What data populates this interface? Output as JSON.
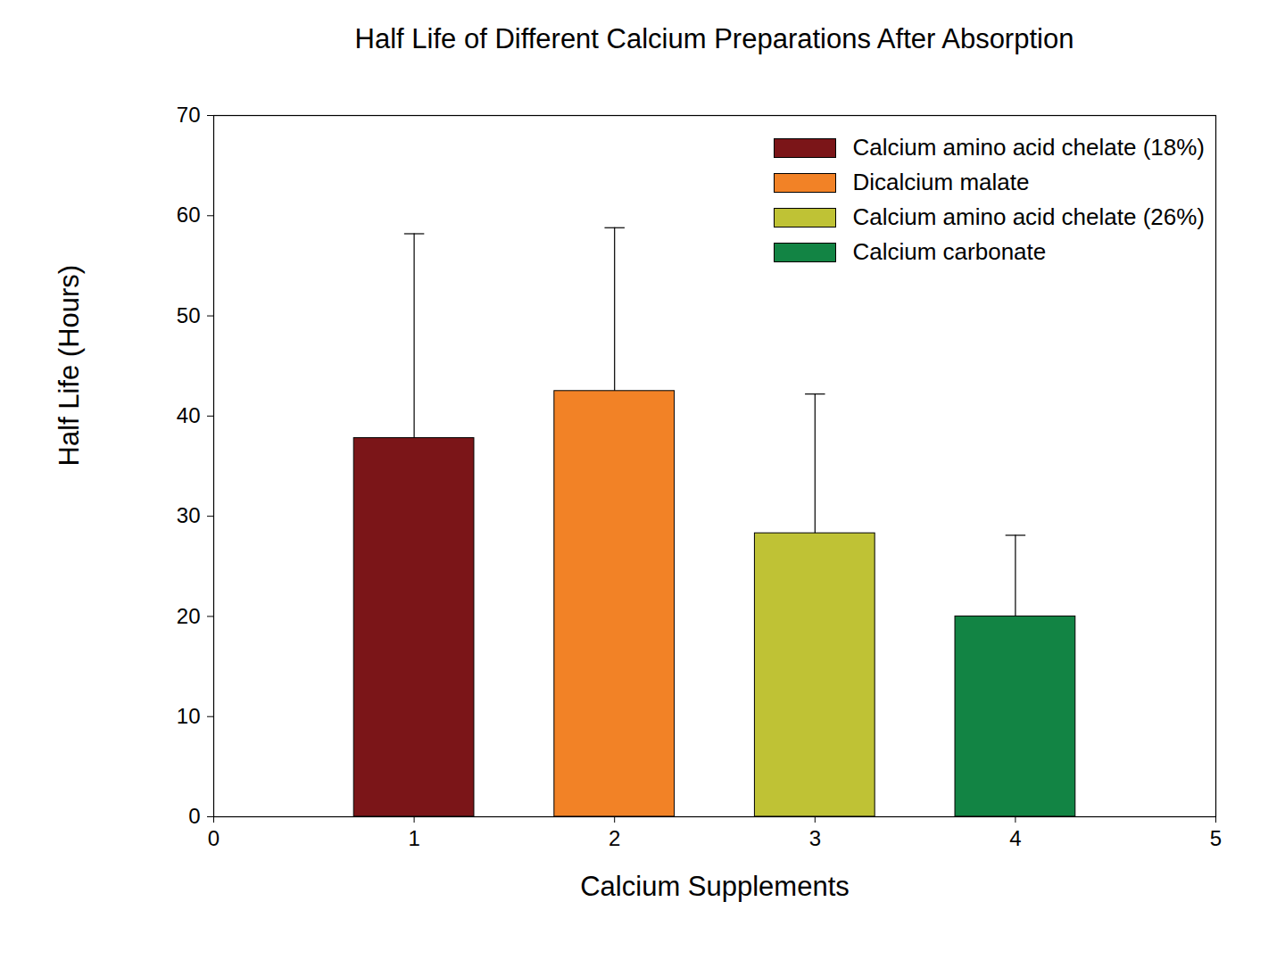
{
  "chart_data": {
    "type": "bar",
    "title": "Half Life of Different Calcium Preparations After Absorption",
    "x_label": "Calcium Supplements",
    "y_label": "Half Life (Hours)",
    "x": [
      1,
      2,
      3,
      4
    ],
    "series": [
      {
        "name": "Calcium amino acid chelate (18%)",
        "color": "#7b1518",
        "values": [
          37.8,
          null,
          null,
          null
        ],
        "errors": [
          20.4,
          null,
          null,
          null
        ]
      },
      {
        "name": "Dicalcium malate",
        "color": "#f28226",
        "values": [
          null,
          42.5,
          null,
          null
        ],
        "errors": [
          null,
          16.3,
          null,
          null
        ]
      },
      {
        "name": "Calcium amino acid chelate (26%)",
        "color": "#bfc235",
        "values": [
          null,
          null,
          28.3,
          null
        ],
        "errors": [
          null,
          null,
          13.9,
          null
        ]
      },
      {
        "name": "Calcium carbonate",
        "color": "#128444",
        "values": [
          null,
          null,
          null,
          20.0
        ],
        "errors": [
          null,
          null,
          null,
          8.1
        ]
      }
    ],
    "xlim": [
      0,
      5
    ],
    "xticks": [
      0,
      1,
      2,
      3,
      4,
      5
    ],
    "ylim": [
      0,
      70
    ],
    "yticks": [
      0,
      10,
      20,
      30,
      40,
      50,
      60,
      70
    ],
    "grid": false,
    "legend": "upper right"
  }
}
